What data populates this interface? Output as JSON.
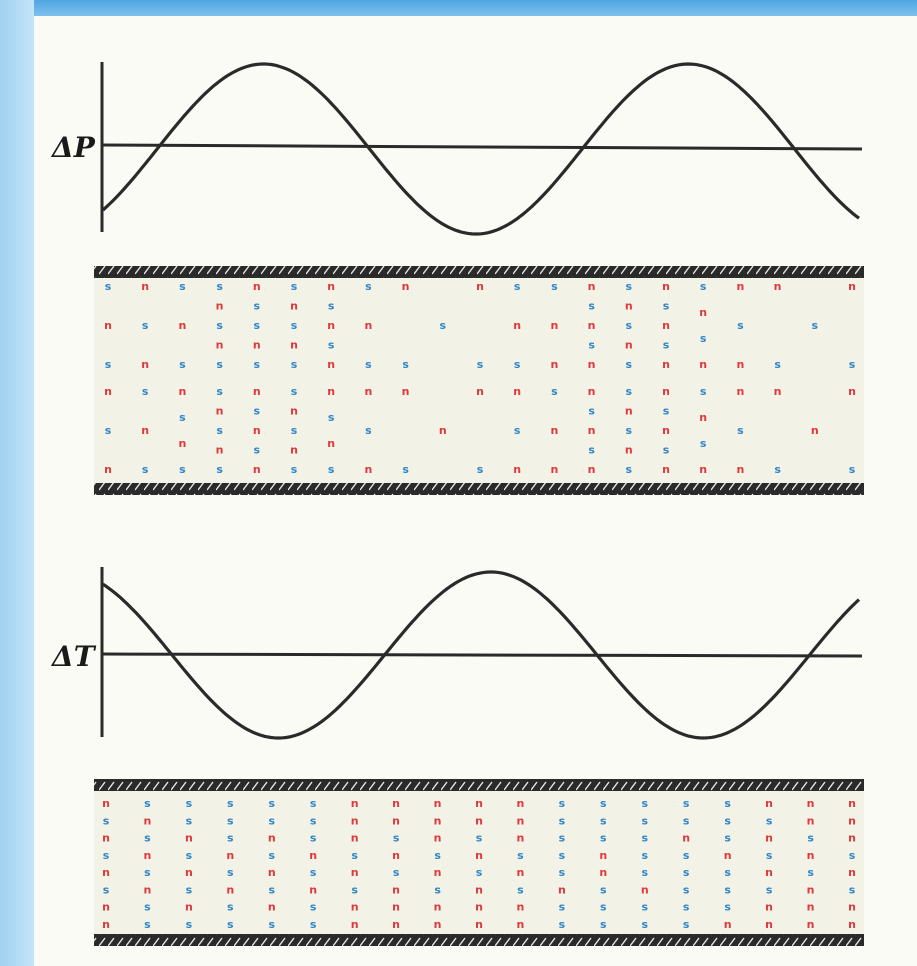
{
  "labels": {
    "pressure": "ΔP",
    "temperature": "ΔT"
  },
  "glyphs": {
    "n": "n",
    "s": "s"
  },
  "colors": {
    "n": "#e0383b",
    "s": "#2f86c8",
    "wall": "#2a2a2a",
    "curve": "#2a2a2a",
    "fill": "#f3f2e6"
  },
  "pressure_tube": {
    "upper": [
      [
        "s",
        "n",
        "s"
      ],
      [
        "n",
        "s",
        "n"
      ],
      [
        "s",
        "n",
        "s"
      ],
      [
        "s",
        "n",
        "s",
        "n",
        "s"
      ],
      [
        "n",
        "s",
        "s",
        "n",
        "s"
      ],
      [
        "s",
        "n",
        "s",
        "n",
        "s"
      ],
      [
        "n",
        "s",
        "n",
        "s",
        "n"
      ],
      [
        "s",
        "n",
        "s"
      ],
      [
        "n",
        "s"
      ],
      [
        "s"
      ],
      [
        "n",
        "s"
      ],
      [
        "s",
        "n",
        "s"
      ],
      [
        "s",
        "n",
        "n"
      ],
      [
        "n",
        "s",
        "n",
        "s",
        "n"
      ],
      [
        "s",
        "n",
        "s",
        "n",
        "s"
      ],
      [
        "n",
        "s",
        "n",
        "s",
        "n"
      ],
      [
        "s",
        "n",
        "s",
        "n"
      ],
      [
        "n",
        "s",
        "n"
      ],
      [
        "n",
        "s"
      ],
      [
        "s"
      ],
      [
        "n",
        "s"
      ]
    ],
    "lower": [
      [
        "n",
        "s",
        "n"
      ],
      [
        "s",
        "n",
        "s"
      ],
      [
        "n",
        "s",
        "n",
        "s"
      ],
      [
        "s",
        "n",
        "s",
        "n",
        "s"
      ],
      [
        "n",
        "s",
        "n",
        "s",
        "n"
      ],
      [
        "s",
        "n",
        "s",
        "n",
        "s"
      ],
      [
        "n",
        "s",
        "n",
        "s"
      ],
      [
        "n",
        "s",
        "n"
      ],
      [
        "n",
        "s"
      ],
      [
        "n"
      ],
      [
        "n",
        "s"
      ],
      [
        "n",
        "s",
        "n"
      ],
      [
        "s",
        "n",
        "n"
      ],
      [
        "n",
        "s",
        "n",
        "s",
        "n"
      ],
      [
        "s",
        "n",
        "s",
        "n",
        "s"
      ],
      [
        "n",
        "s",
        "n",
        "s",
        "n"
      ],
      [
        "s",
        "n",
        "s",
        "n"
      ],
      [
        "n",
        "s",
        "n"
      ],
      [
        "n",
        "s"
      ],
      [
        "n"
      ],
      [
        "n",
        "s"
      ]
    ]
  },
  "temperature_tube": {
    "rows": [
      [
        "n",
        "s",
        "s",
        "s",
        "s",
        "s",
        "n",
        "n",
        "n",
        "n",
        "n",
        "s",
        "s",
        "s",
        "s",
        "s",
        "n",
        "n",
        "n"
      ],
      [
        "s",
        "n",
        "s",
        "s",
        "s",
        "s",
        "n",
        "n",
        "n",
        "n",
        "n",
        "s",
        "s",
        "s",
        "s",
        "s",
        "s",
        "n",
        "n"
      ],
      [
        "n",
        "s",
        "n",
        "s",
        "n",
        "s",
        "n",
        "s",
        "n",
        "s",
        "n",
        "s",
        "s",
        "s",
        "n",
        "s",
        "n",
        "s",
        "n"
      ],
      [
        "s",
        "n",
        "s",
        "n",
        "s",
        "n",
        "s",
        "n",
        "s",
        "n",
        "s",
        "s",
        "n",
        "s",
        "s",
        "n",
        "s",
        "n",
        "s"
      ],
      [
        "n",
        "s",
        "n",
        "s",
        "n",
        "s",
        "n",
        "s",
        "n",
        "s",
        "n",
        "s",
        "n",
        "s",
        "s",
        "s",
        "n",
        "s",
        "n"
      ],
      [
        "s",
        "n",
        "s",
        "n",
        "s",
        "n",
        "s",
        "n",
        "s",
        "n",
        "s",
        "n",
        "s",
        "n",
        "s",
        "s",
        "s",
        "n",
        "s"
      ],
      [
        "n",
        "s",
        "n",
        "s",
        "n",
        "s",
        "n",
        "n",
        "n",
        "n",
        "n",
        "s",
        "s",
        "s",
        "s",
        "s",
        "n",
        "n",
        "n"
      ],
      [
        "n",
        "s",
        "s",
        "s",
        "s",
        "s",
        "n",
        "n",
        "n",
        "n",
        "n",
        "s",
        "s",
        "s",
        "s",
        "n",
        "n",
        "n",
        "n"
      ]
    ]
  }
}
